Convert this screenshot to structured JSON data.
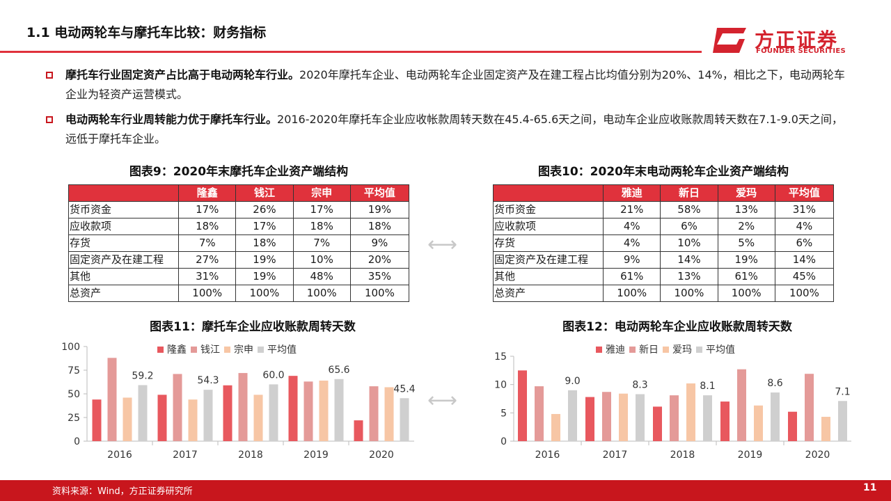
{
  "header": {
    "title": "1.1 电动两轮车与摩托车比较：财务指标",
    "logo_cn": "方正证券",
    "logo_en": "FOUNDER SECURITIES"
  },
  "bullets": [
    {
      "bold": "摩托车行业固定资产占比高于电动两轮车行业。",
      "text": "2020年摩托车企业、电动两轮车企业固定资产及在建工程占比均值分别为20%、14%，相比之下，电动两轮车企业为轻资产运营模式。"
    },
    {
      "bold": "电动两轮车行业周转能力优于摩托车行业。",
      "text": "2016-2020年摩托车企业应收帐款周转天数在45.4-65.6天之间，电动车企业应收账款周转天数在7.1-9.0天之间，远低于摩托车企业。"
    }
  ],
  "table9": {
    "caption": "图表9：2020年末摩托车企业资产端结构",
    "headers": [
      "",
      "隆鑫",
      "钱江",
      "宗申",
      "平均值"
    ],
    "rows": [
      [
        "货币资金",
        "17%",
        "26%",
        "17%",
        "19%"
      ],
      [
        "应收款项",
        "18%",
        "17%",
        "18%",
        "18%"
      ],
      [
        "存货",
        "7%",
        "18%",
        "7%",
        "9%"
      ],
      [
        "固定资产及在建工程",
        "27%",
        "19%",
        "10%",
        "20%"
      ],
      [
        "其他",
        "31%",
        "19%",
        "48%",
        "35%"
      ],
      [
        "总资产",
        "100%",
        "100%",
        "100%",
        "100%"
      ]
    ]
  },
  "table10": {
    "caption": "图表10：2020年末电动两轮车企业资产端结构",
    "headers": [
      "",
      "雅迪",
      "新日",
      "爱玛",
      "平均值"
    ],
    "rows": [
      [
        "货币资金",
        "21%",
        "58%",
        "13%",
        "31%"
      ],
      [
        "应收款项",
        "4%",
        "6%",
        "2%",
        "4%"
      ],
      [
        "存货",
        "4%",
        "10%",
        "5%",
        "6%"
      ],
      [
        "固定资产及在建工程",
        "9%",
        "14%",
        "19%",
        "14%"
      ],
      [
        "其他",
        "61%",
        "13%",
        "61%",
        "45%"
      ],
      [
        "总资产",
        "100%",
        "100%",
        "100%",
        "100%"
      ]
    ]
  },
  "arrow_glyph": "⟷",
  "chart_data": [
    {
      "type": "bar",
      "title": "图表11：摩托车企业应收账款周转天数",
      "categories": [
        "2016",
        "2017",
        "2018",
        "2019",
        "2020"
      ],
      "ylim": [
        0,
        100
      ],
      "yticks": [
        0,
        25,
        50,
        75,
        100
      ],
      "series": [
        {
          "name": "隆鑫",
          "color": "#e8585e",
          "values": [
            44,
            49,
            59,
            69,
            22
          ]
        },
        {
          "name": "钱江",
          "color": "#e49a98",
          "values": [
            88,
            71,
            72,
            63,
            58
          ]
        },
        {
          "name": "宗申",
          "color": "#f7c6a5",
          "values": [
            46,
            44,
            49,
            64,
            57
          ]
        },
        {
          "name": "平均值",
          "color": "#cfcfcf",
          "values": [
            59.2,
            54.3,
            60.0,
            65.6,
            45.4
          ]
        }
      ],
      "data_labels": [
        "59.2",
        "54.3",
        "60.0",
        "65.6",
        "45.4"
      ],
      "legend": "top"
    },
    {
      "type": "bar",
      "title": "图表12：电动两轮车企业应收账款周转天数",
      "categories": [
        "2016",
        "2017",
        "2018",
        "2019",
        "2020"
      ],
      "ylim": [
        0,
        15
      ],
      "yticks": [
        0,
        5,
        10,
        15
      ],
      "series": [
        {
          "name": "雅迪",
          "color": "#e8585e",
          "values": [
            12.5,
            7.8,
            6.1,
            7.0,
            5.2
          ]
        },
        {
          "name": "新日",
          "color": "#e49a98",
          "values": [
            9.7,
            8.7,
            8.1,
            12.7,
            11.9
          ]
        },
        {
          "name": "爱玛",
          "color": "#f7c6a5",
          "values": [
            4.8,
            8.4,
            10.2,
            6.3,
            4.3
          ]
        },
        {
          "name": "平均值",
          "color": "#cfcfcf",
          "values": [
            9.0,
            8.3,
            8.1,
            8.6,
            7.1
          ]
        }
      ],
      "data_labels": [
        "9.0",
        "8.3",
        "8.1",
        "8.6",
        "7.1"
      ],
      "legend": "top"
    }
  ],
  "footer": {
    "source": "资料来源：Wind，方正证券研究所",
    "page": "11"
  }
}
